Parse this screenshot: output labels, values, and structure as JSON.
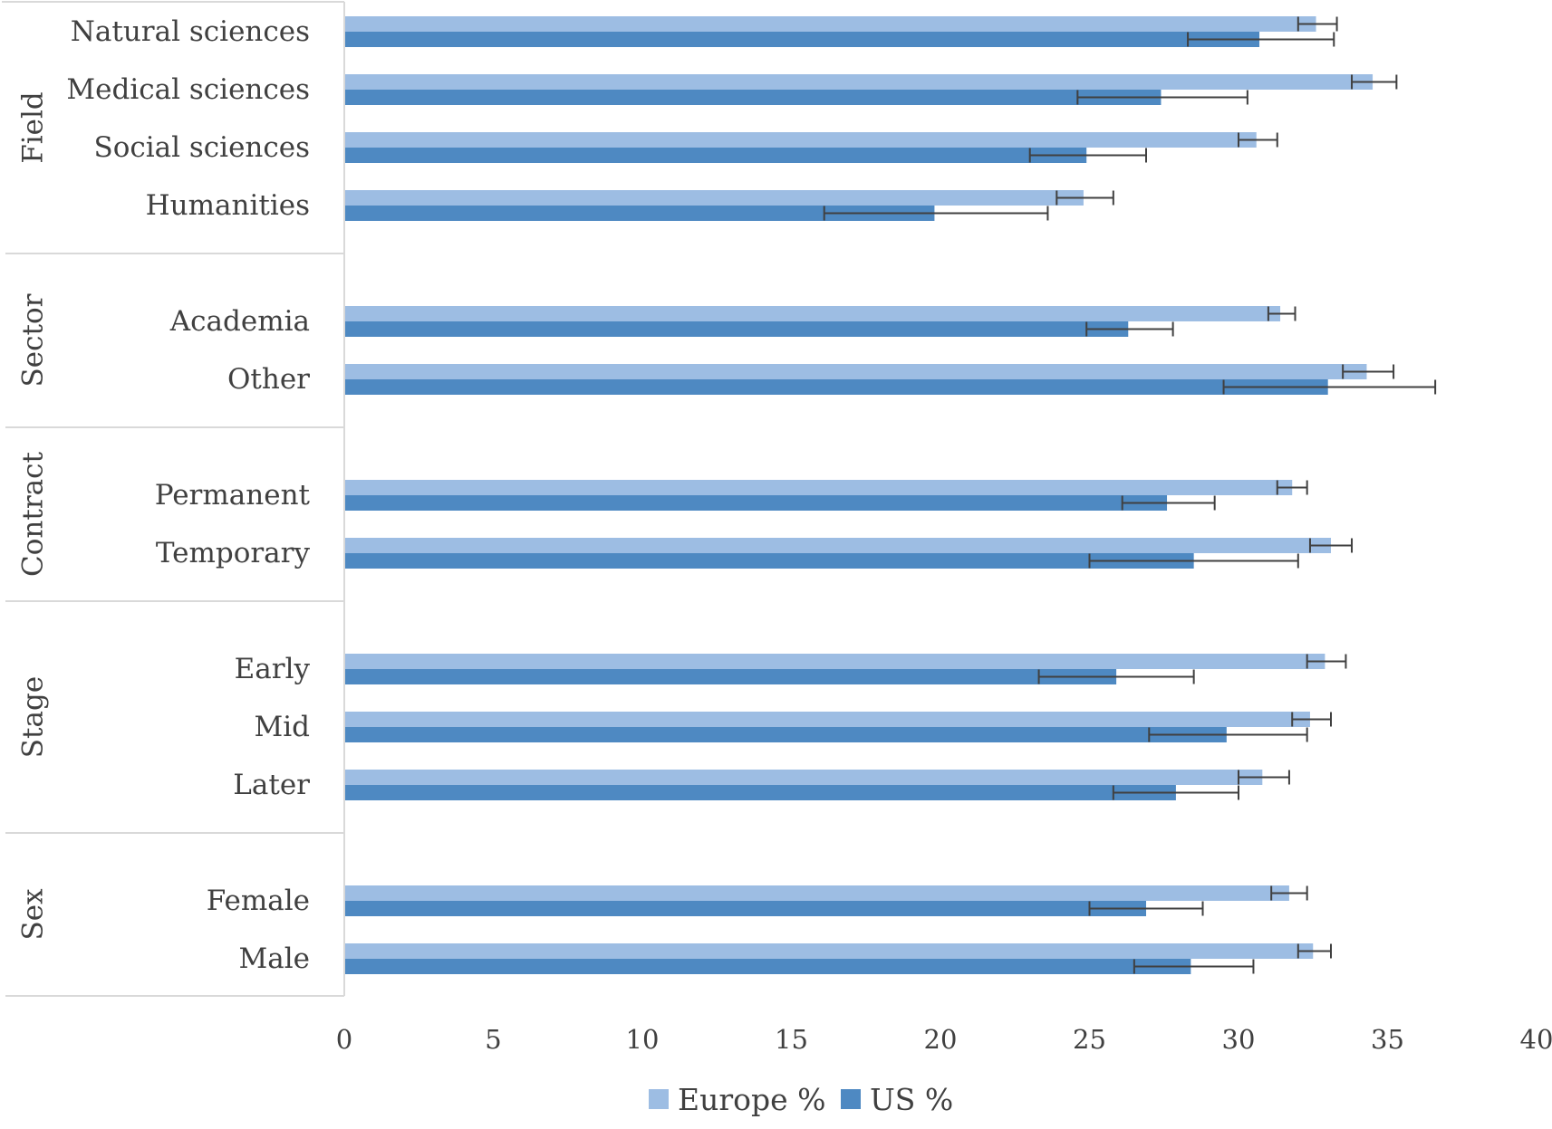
{
  "colors": {
    "europe": "#9dbde3",
    "us": "#4e89c2",
    "error_bar": "#404040",
    "separator": "#d9d9d9",
    "text": "#404040"
  },
  "chart_data": {
    "type": "bar",
    "orientation": "horizontal",
    "xlim": [
      0,
      40
    ],
    "x_ticks": [
      0,
      5,
      10,
      15,
      20,
      25,
      30,
      35,
      40
    ],
    "x_tick_labels": [
      "0",
      "5",
      "10",
      "15",
      "20",
      "25",
      "30",
      "35",
      "40"
    ],
    "grid": false,
    "legend_position": "bottom",
    "groups": [
      {
        "name": "Field",
        "categories": [
          "Natural sciences",
          "Medical sciences",
          "Social sciences",
          "Humanities"
        ]
      },
      {
        "name": "Sector",
        "categories": [
          "Academia",
          "Other"
        ]
      },
      {
        "name": "Contract",
        "categories": [
          "Permanent",
          "Temporary"
        ]
      },
      {
        "name": "Stage",
        "categories": [
          "Early",
          "Mid",
          "Later"
        ]
      },
      {
        "name": "Sex",
        "categories": [
          "Female",
          "Male"
        ]
      }
    ],
    "series": [
      {
        "name": "Europe %",
        "values": [
          32.6,
          34.5,
          30.6,
          24.8,
          31.4,
          34.3,
          31.8,
          33.1,
          32.9,
          32.4,
          30.8,
          31.7,
          32.5
        ],
        "err_low": [
          32.0,
          33.8,
          30.0,
          23.9,
          31.0,
          33.5,
          31.3,
          32.4,
          32.3,
          31.8,
          30.0,
          31.1,
          32.0
        ],
        "err_high": [
          33.3,
          35.3,
          31.3,
          25.8,
          31.9,
          35.2,
          32.3,
          33.8,
          33.6,
          33.1,
          31.7,
          32.3,
          33.1
        ]
      },
      {
        "name": "US %",
        "values": [
          30.7,
          27.4,
          24.9,
          19.8,
          26.3,
          33.0,
          27.6,
          28.5,
          25.9,
          29.6,
          27.9,
          26.9,
          28.4
        ],
        "err_low": [
          28.3,
          24.6,
          23.0,
          16.1,
          24.9,
          29.5,
          26.1,
          25.0,
          23.3,
          27.0,
          25.8,
          25.0,
          26.5
        ],
        "err_high": [
          33.2,
          30.3,
          26.9,
          23.6,
          27.8,
          36.6,
          29.2,
          32.0,
          28.5,
          32.3,
          30.0,
          28.8,
          30.5
        ]
      }
    ]
  }
}
